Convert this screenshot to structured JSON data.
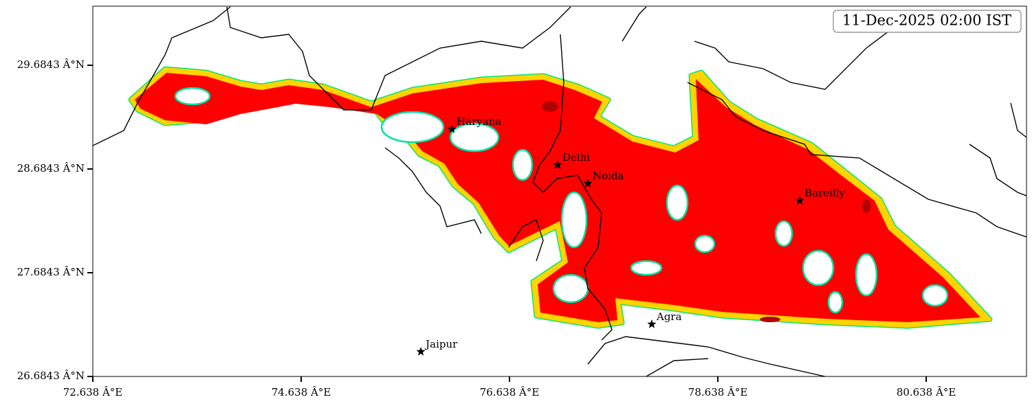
{
  "chart_data": {
    "type": "map",
    "annotation": "11-Dec-2025 02:00 IST",
    "xlim": [
      72.638,
      81.601
    ],
    "ylim": [
      26.6843,
      30.254
    ],
    "xticks": [
      {
        "value": 72.638,
        "label": "72.638 Â°E"
      },
      {
        "value": 74.638,
        "label": "74.638 Â°E"
      },
      {
        "value": 76.638,
        "label": "76.638 Â°E"
      },
      {
        "value": 78.638,
        "label": "78.638 Â°E"
      },
      {
        "value": 80.638,
        "label": "80.638 Â°E"
      }
    ],
    "yticks": [
      {
        "value": 26.6843,
        "label": "26.6843 Â°N"
      },
      {
        "value": 27.6843,
        "label": "27.6843 Â°N"
      },
      {
        "value": 28.6843,
        "label": "28.6843 Â°N"
      },
      {
        "value": 29.6843,
        "label": "29.6843 Â°N"
      }
    ],
    "places": [
      {
        "name": "Haryana",
        "lon": 76.084,
        "lat": 29.068
      },
      {
        "name": "Delhi",
        "lon": 77.1,
        "lat": 28.724
      },
      {
        "name": "Noida",
        "lon": 77.39,
        "lat": 28.545
      },
      {
        "name": "Bareilly",
        "lon": 79.424,
        "lat": 28.38
      },
      {
        "name": "Agra",
        "lon": 78.004,
        "lat": 27.188
      },
      {
        "name": "Jaipur",
        "lon": 75.787,
        "lat": 26.923
      }
    ]
  }
}
